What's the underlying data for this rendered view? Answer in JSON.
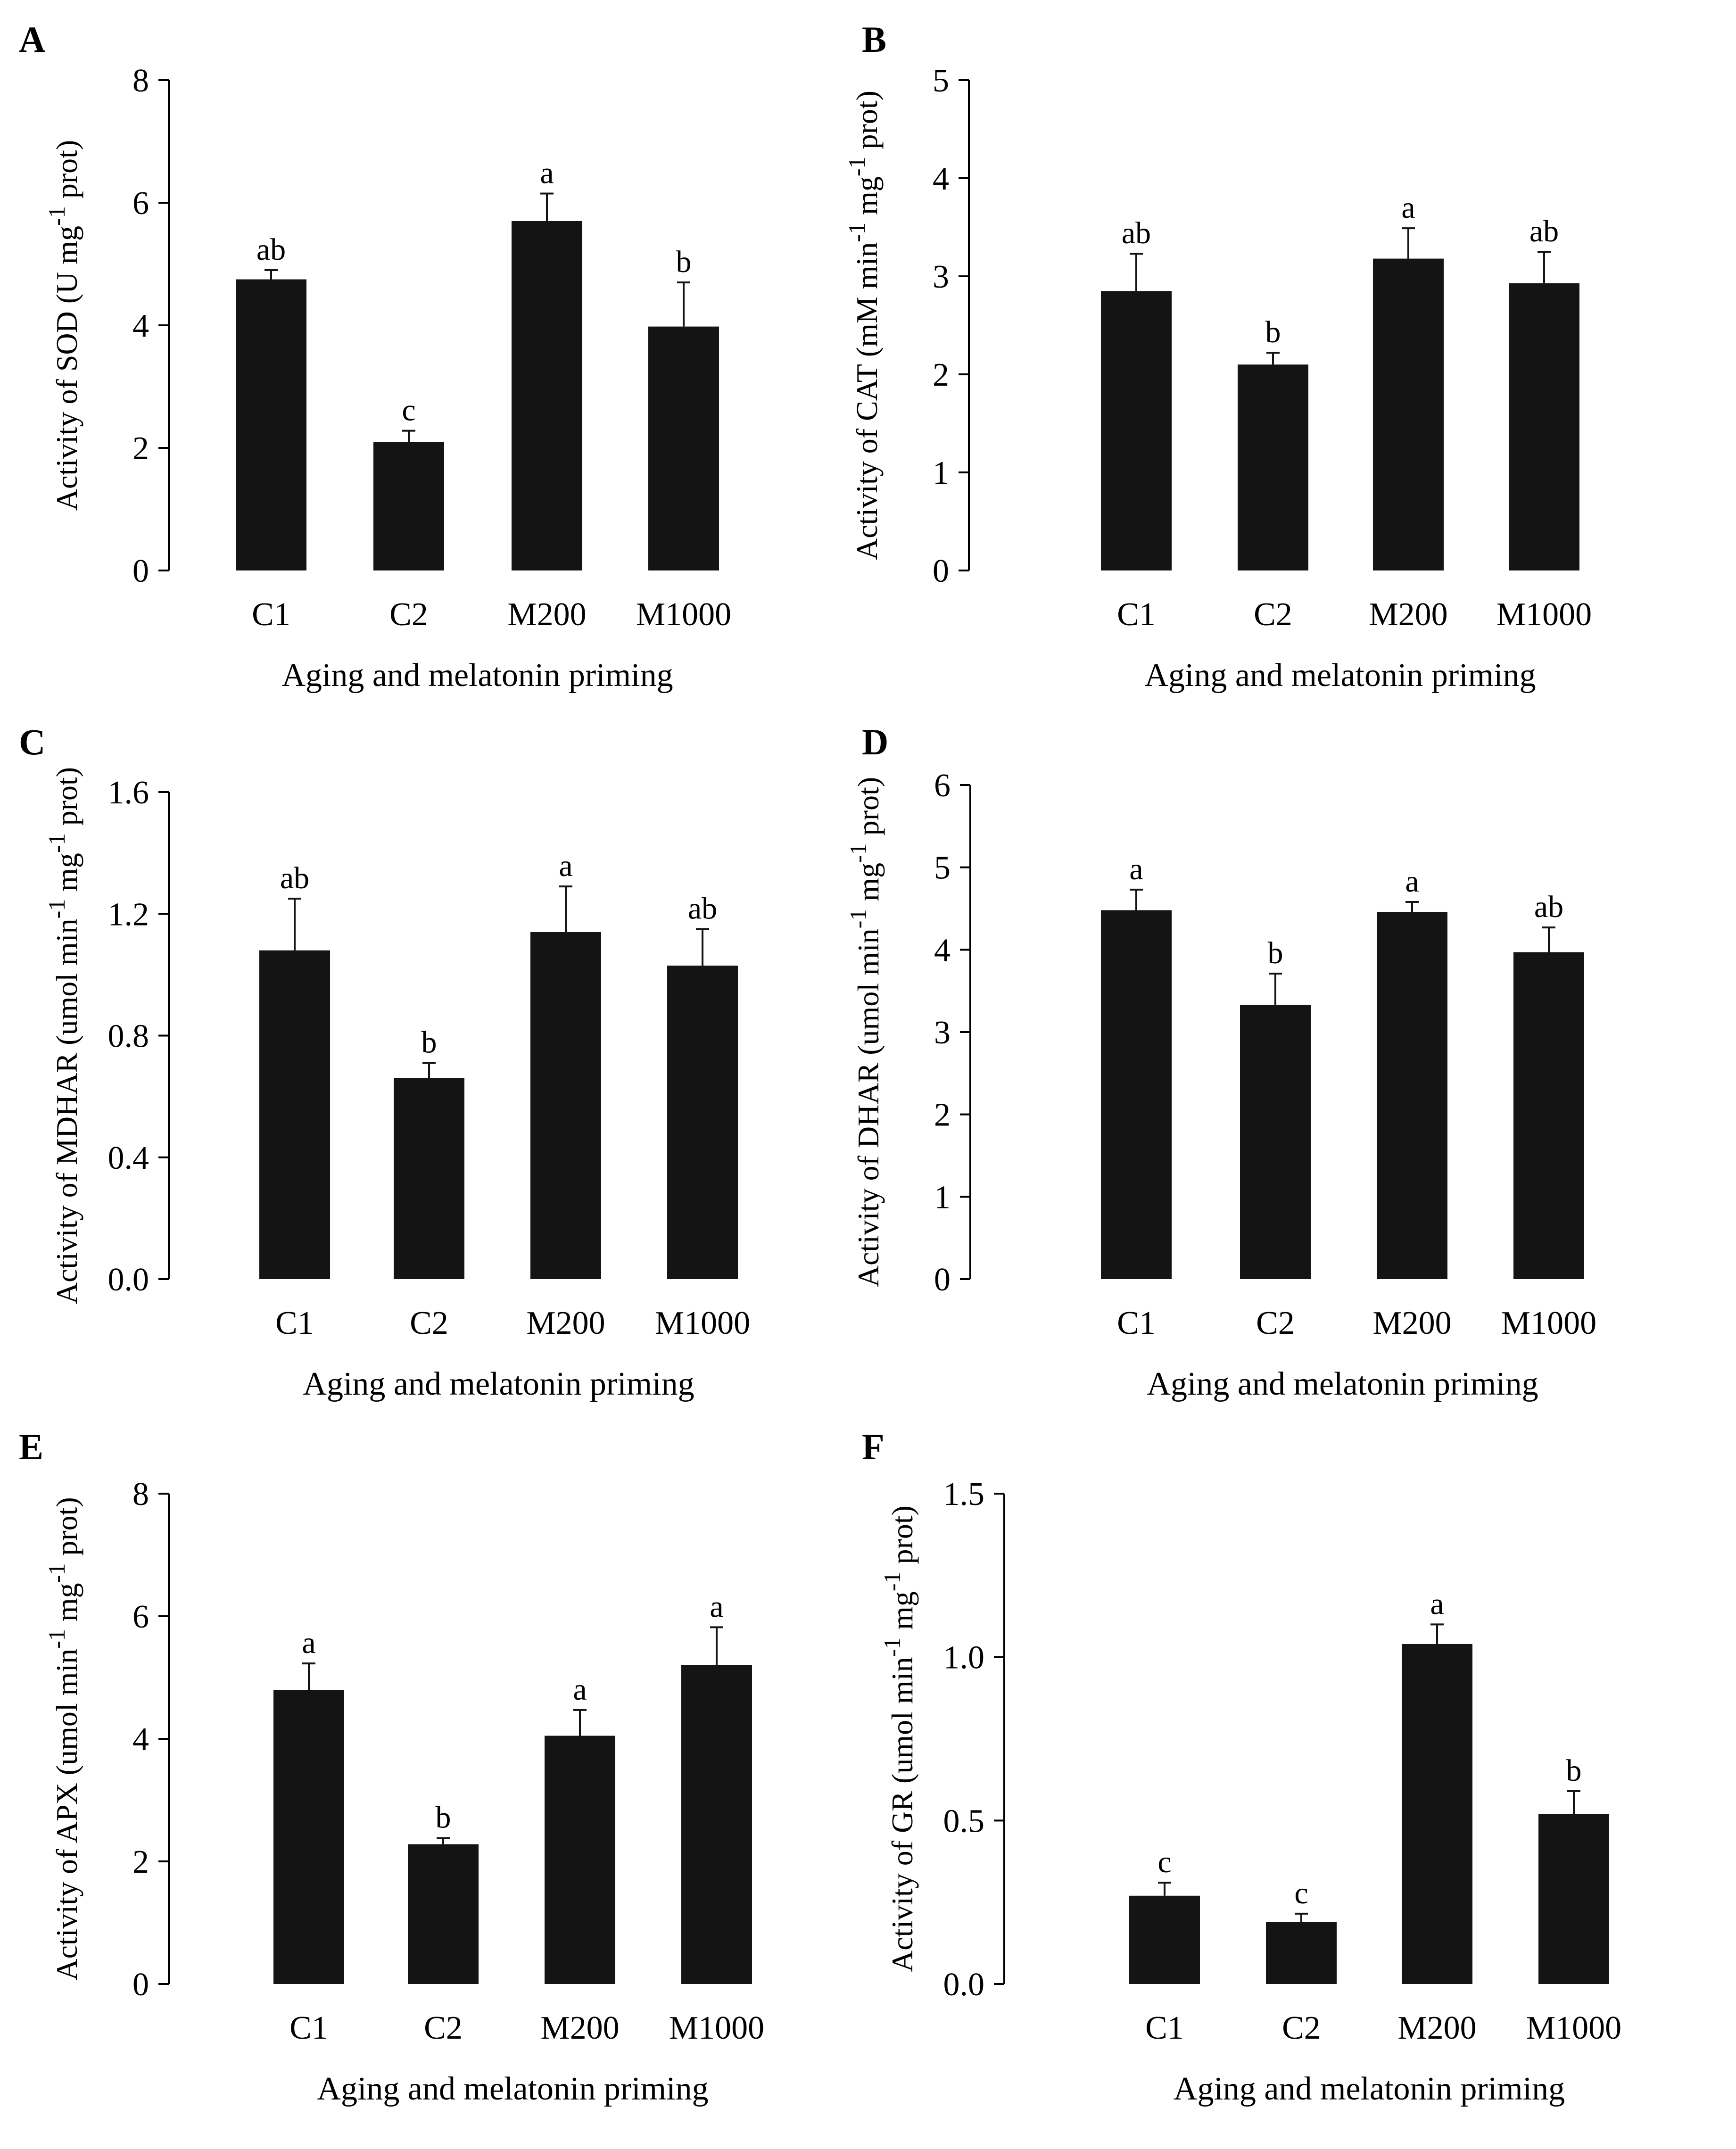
{
  "figure": {
    "x_title": "Aging and melatonin priming",
    "categories": [
      "C1",
      "C2",
      "M200",
      "M1000"
    ]
  },
  "chart_data": [
    {
      "panel": "A",
      "type": "bar",
      "categories": [
        "C1",
        "C2",
        "M200",
        "M1000"
      ],
      "values": [
        4.75,
        2.1,
        5.7,
        3.98
      ],
      "errors": [
        0.15,
        0.18,
        0.45,
        0.72
      ],
      "significance": [
        "ab",
        "c",
        "a",
        "b"
      ],
      "ylabel_main": "Activity of SOD (U mg",
      "ylabel_sup": "-1",
      "ylabel_tail": " prot)",
      "xlabel": "Aging and melatonin priming",
      "ylim": [
        0,
        8
      ],
      "yticks": [
        "0",
        "2",
        "4",
        "6",
        "8"
      ],
      "ytick_values": [
        0,
        2,
        4,
        6,
        8
      ]
    },
    {
      "panel": "B",
      "type": "bar",
      "categories": [
        "C1",
        "C2",
        "M200",
        "M1000"
      ],
      "values": [
        2.85,
        2.1,
        3.18,
        2.93
      ],
      "errors": [
        0.38,
        0.12,
        0.31,
        0.32
      ],
      "significance": [
        "ab",
        "b",
        "a",
        "ab"
      ],
      "ylabel_main": "Activity of CAT (mM min",
      "ylabel_sup": "-1",
      "ylabel_mid": " mg",
      "ylabel_sup2": "-1",
      "ylabel_tail": " prot)",
      "xlabel": "Aging and melatonin priming",
      "ylim": [
        0,
        5
      ],
      "yticks": [
        "0",
        "1",
        "2",
        "3",
        "4",
        "5"
      ],
      "ytick_values": [
        0,
        1,
        2,
        3,
        4,
        5
      ]
    },
    {
      "panel": "C",
      "type": "bar",
      "categories": [
        "C1",
        "C2",
        "M200",
        "M1000"
      ],
      "values": [
        1.08,
        0.66,
        1.14,
        1.03
      ],
      "errors": [
        0.17,
        0.05,
        0.15,
        0.12
      ],
      "significance": [
        "ab",
        "b",
        "a",
        "ab"
      ],
      "ylabel_main": "Activity of MDHAR (umol min",
      "ylabel_sup": "-1",
      "ylabel_mid": " mg",
      "ylabel_sup2": "-1",
      "ylabel_tail": " prot)",
      "xlabel": "Aging and melatonin priming",
      "ylim": [
        0,
        1.6
      ],
      "yticks": [
        "0.0",
        "0.4",
        "0.8",
        "1.2",
        "1.6"
      ],
      "ytick_values": [
        0,
        0.4,
        0.8,
        1.2,
        1.6
      ]
    },
    {
      "panel": "D",
      "type": "bar",
      "categories": [
        "C1",
        "C2",
        "M200",
        "M1000"
      ],
      "values": [
        4.48,
        3.33,
        4.46,
        3.97
      ],
      "errors": [
        0.25,
        0.38,
        0.12,
        0.3
      ],
      "significance": [
        "a",
        "b",
        "a",
        "ab"
      ],
      "ylabel_main": "Activity of DHAR (umol min",
      "ylabel_sup": "-1",
      "ylabel_mid": " mg",
      "ylabel_sup2": "-1",
      "ylabel_tail": " prot)",
      "xlabel": "Aging and melatonin priming",
      "ylim": [
        0,
        6
      ],
      "yticks": [
        "0",
        "1",
        "2",
        "3",
        "4",
        "5",
        "6"
      ],
      "ytick_values": [
        0,
        1,
        2,
        3,
        4,
        5,
        6
      ]
    },
    {
      "panel": "E",
      "type": "bar",
      "categories": [
        "C1",
        "C2",
        "M200",
        "M1000"
      ],
      "values": [
        4.8,
        2.28,
        4.05,
        5.2
      ],
      "errors": [
        0.43,
        0.1,
        0.42,
        0.62
      ],
      "significance": [
        "a",
        "b",
        "a",
        "a"
      ],
      "ylabel_main": "Activity of APX (umol min",
      "ylabel_sup": "-1",
      "ylabel_mid": " mg",
      "ylabel_sup2": "-1",
      "ylabel_tail": " prot)",
      "xlabel": "Aging and melatonin priming",
      "ylim": [
        0,
        8
      ],
      "yticks": [
        "0",
        "2",
        "4",
        "6",
        "8"
      ],
      "ytick_values": [
        0,
        2,
        4,
        6,
        8
      ]
    },
    {
      "panel": "F",
      "type": "bar",
      "categories": [
        "C1",
        "C2",
        "M200",
        "M1000"
      ],
      "values": [
        0.27,
        0.19,
        1.04,
        0.52
      ],
      "errors": [
        0.04,
        0.025,
        0.06,
        0.07
      ],
      "significance": [
        "c",
        "c",
        "a",
        "b"
      ],
      "ylabel_main": "Activity of GR (umol min",
      "ylabel_sup": "-1",
      "ylabel_mid": " mg",
      "ylabel_sup2": "-1",
      "ylabel_tail": " prot)",
      "xlabel": "Aging and melatonin priming",
      "ylim": [
        0,
        1.5
      ],
      "yticks": [
        "0.0",
        "0.5",
        "1.0",
        "1.5"
      ],
      "ytick_values": [
        0,
        0.5,
        1.0,
        1.5
      ]
    }
  ]
}
